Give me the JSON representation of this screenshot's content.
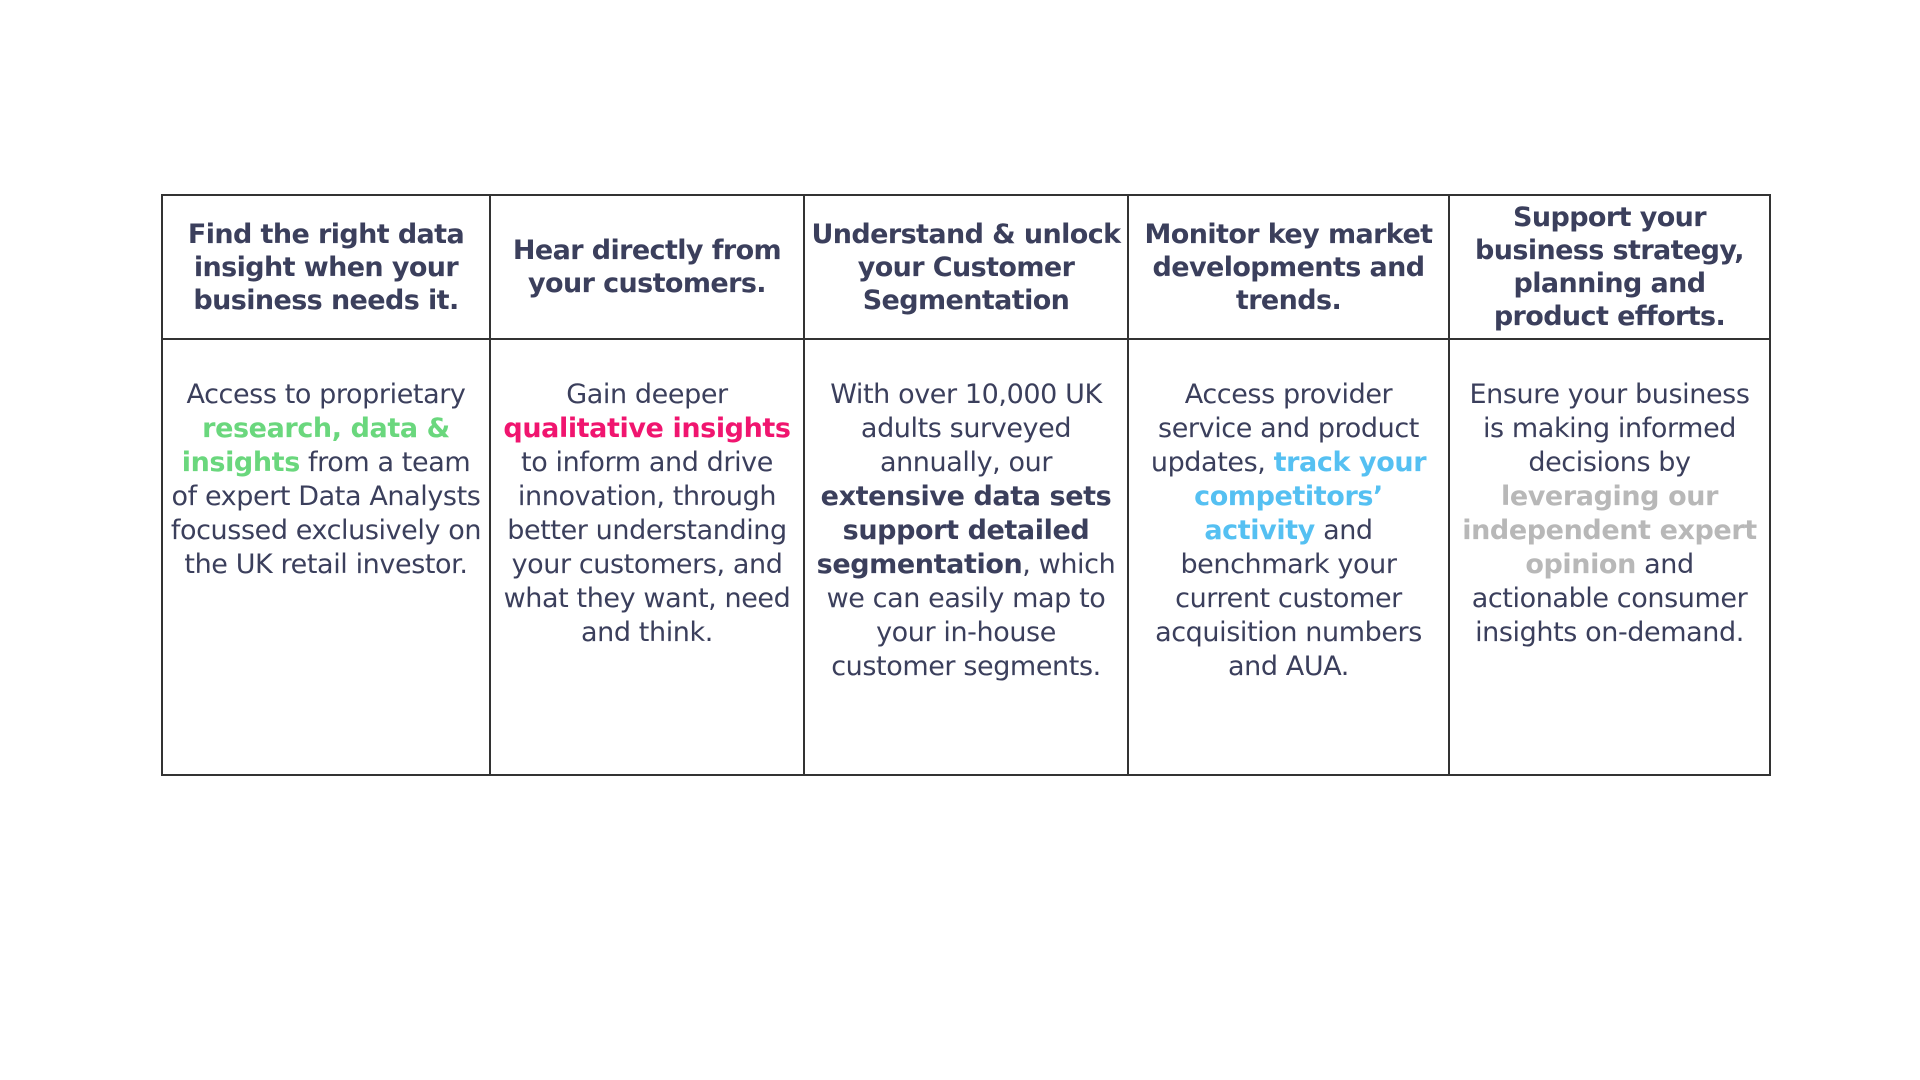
{
  "colors": {
    "text": "#3b3f5c",
    "green": "#6ad77d",
    "pink": "#f0156f",
    "blue": "#55c0f2",
    "grey": "#b8b8b8",
    "border": "#333333"
  },
  "columns": [
    {
      "heading": "Find the right data insight when your business needs it.",
      "body": {
        "pre": "Access to proprietary ",
        "highlight": "research, data & insights",
        "post": " from a team of expert Data Analysts focussed exclusively on the UK retail investor."
      }
    },
    {
      "heading": "Hear directly from your customers.",
      "body": {
        "pre": "Gain deeper ",
        "highlight": "qualitative insights",
        "post": " to inform and drive innovation, through better understanding your customers, and what they want, need and think."
      }
    },
    {
      "heading": "Understand & unlock your Customer Segmentation",
      "body": {
        "pre": "With over 10,000 UK adults surveyed annually, our ",
        "highlight": "extensive data sets support detailed segmentation",
        "post": ", which we can easily map to your in-house customer segments."
      }
    },
    {
      "heading": "Monitor key market developments and trends.",
      "body": {
        "pre": "Access provider service and product updates, ",
        "highlight": "track your competitors’ activity",
        "post": " and benchmark your current customer acquisition numbers and AUA."
      }
    },
    {
      "heading": "Support your business strategy, planning and product efforts.",
      "body": {
        "pre": "Ensure your business is making informed decisions by ",
        "highlight": "leveraging our independent expert opinion",
        "post": " and actionable consumer insights on-demand."
      }
    }
  ]
}
